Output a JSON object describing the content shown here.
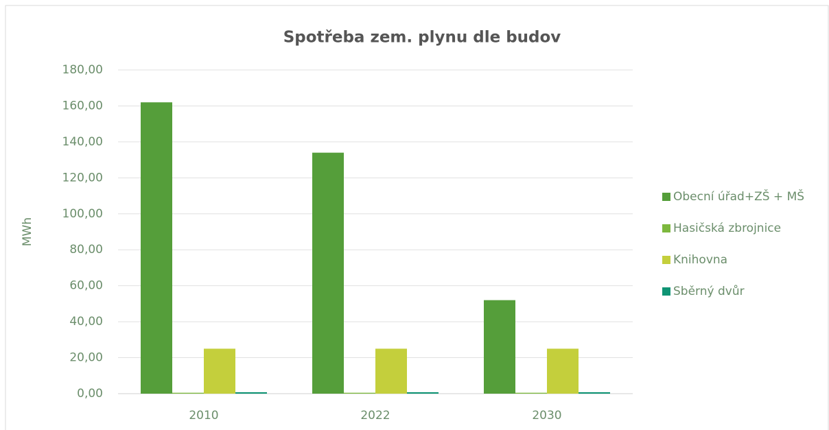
{
  "chart_data": {
    "type": "bar",
    "title": "Spotřeba zem. plynu dle budov",
    "y_label": "MWh",
    "categories": [
      "2010",
      "2022",
      "2030"
    ],
    "series": [
      {
        "name": "Obecní úřad+ZŠ + MŠ",
        "color": "#559e3a",
        "values": [
          162,
          134,
          52
        ]
      },
      {
        "name": "Hasičská zbrojnice",
        "color": "#7db83e",
        "values": [
          0.5,
          0.5,
          0.5
        ]
      },
      {
        "name": "Knihovna",
        "color": "#c4cf3c",
        "values": [
          25,
          25,
          25
        ]
      },
      {
        "name": "Sběrný dvůr",
        "color": "#0f9474",
        "values": [
          0.8,
          0.8,
          0.8
        ]
      }
    ],
    "ylim": [
      0,
      180
    ],
    "yticks": [
      {
        "value": 0,
        "label": "0,00"
      },
      {
        "value": 20,
        "label": "20,00"
      },
      {
        "value": 40,
        "label": "40,00"
      },
      {
        "value": 60,
        "label": "60,00"
      },
      {
        "value": 80,
        "label": "80,00"
      },
      {
        "value": 100,
        "label": "100,00"
      },
      {
        "value": 120,
        "label": "120,00"
      },
      {
        "value": 140,
        "label": "140,00"
      },
      {
        "value": 160,
        "label": "160,00"
      },
      {
        "value": 180,
        "label": "180,00"
      }
    ],
    "grid": true,
    "legend": "right"
  }
}
